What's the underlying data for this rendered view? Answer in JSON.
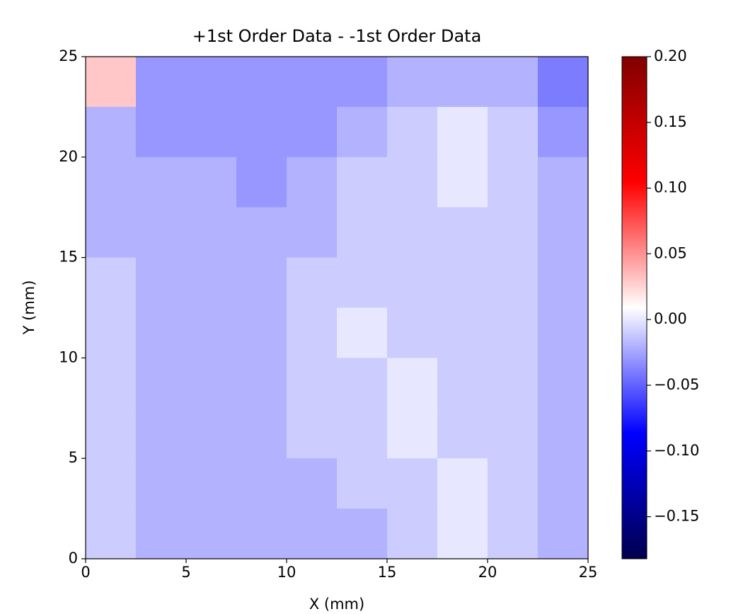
{
  "chart_data": {
    "type": "heatmap",
    "title": "+1st Order Data - -1st Order Data",
    "xlabel": "X (mm)",
    "ylabel": "Y (mm)",
    "xlim": [
      0,
      25
    ],
    "ylim": [
      0,
      25
    ],
    "xticks": [
      0,
      5,
      10,
      15,
      20,
      25
    ],
    "yticks": [
      0,
      5,
      10,
      15,
      20,
      25
    ],
    "cmap": "seismic",
    "clim": [
      -0.182,
      0.2
    ],
    "cticks": [
      {
        "value": 0.2,
        "label": "0.20"
      },
      {
        "value": 0.15,
        "label": "0.15"
      },
      {
        "value": 0.1,
        "label": "0.10"
      },
      {
        "value": 0.05,
        "label": "0.05"
      },
      {
        "value": 0,
        "label": "0.00"
      },
      {
        "value": -0.05,
        "label": "−0.05"
      },
      {
        "value": -0.1,
        "label": "−0.10"
      },
      {
        "value": -0.15,
        "label": "−0.15"
      }
    ],
    "z": [
      [
        0.03,
        -0.03,
        -0.03,
        -0.03,
        -0.03,
        -0.03,
        -0.02,
        -0.02,
        -0.02,
        -0.04
      ],
      [
        -0.02,
        -0.03,
        -0.03,
        -0.03,
        -0.03,
        -0.02,
        -0.01,
        0.0,
        -0.01,
        -0.03
      ],
      [
        -0.02,
        -0.02,
        -0.02,
        -0.03,
        -0.02,
        -0.01,
        -0.01,
        0.0,
        -0.01,
        -0.02
      ],
      [
        -0.02,
        -0.02,
        -0.02,
        -0.02,
        -0.02,
        -0.01,
        -0.01,
        -0.01,
        -0.01,
        -0.02
      ],
      [
        -0.01,
        -0.02,
        -0.02,
        -0.02,
        -0.01,
        -0.01,
        -0.01,
        -0.01,
        -0.01,
        -0.02
      ],
      [
        -0.01,
        -0.02,
        -0.02,
        -0.02,
        -0.01,
        0.0,
        -0.01,
        -0.01,
        -0.01,
        -0.02
      ],
      [
        -0.01,
        -0.02,
        -0.02,
        -0.02,
        -0.01,
        -0.01,
        0.0,
        -0.01,
        -0.01,
        -0.02
      ],
      [
        -0.01,
        -0.02,
        -0.02,
        -0.02,
        -0.01,
        -0.01,
        0.0,
        -0.01,
        -0.01,
        -0.02
      ],
      [
        -0.01,
        -0.02,
        -0.02,
        -0.02,
        -0.02,
        -0.01,
        -0.01,
        0.0,
        -0.01,
        -0.02
      ],
      [
        -0.01,
        -0.02,
        -0.02,
        -0.02,
        -0.02,
        -0.02,
        -0.01,
        0.0,
        -0.01,
        -0.02
      ]
    ]
  }
}
